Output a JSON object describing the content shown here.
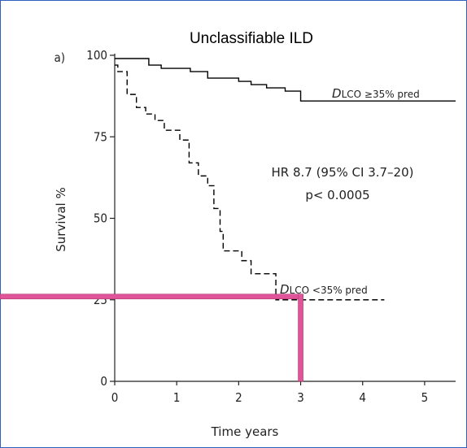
{
  "chart_data": {
    "type": "line",
    "title": "Unclassifiable ILD",
    "panel_label": "a)",
    "xlabel": "Time years",
    "ylabel": "Survival %",
    "xlim": [
      0,
      5.5
    ],
    "ylim": [
      0,
      100
    ],
    "x_ticks": [
      "0",
      "1",
      "2",
      "3",
      "4",
      "5"
    ],
    "y_ticks": [
      "0",
      "25",
      "50",
      "75",
      "100"
    ],
    "series": [
      {
        "name": "DLCO ≥35% pred",
        "style": "solid",
        "color": "#000000",
        "x": [
          0,
          0.42,
          0.55,
          0.75,
          1.0,
          1.22,
          1.5,
          1.75,
          2.0,
          2.2,
          2.45,
          2.75,
          3.0,
          5.5
        ],
        "y": [
          99,
          99,
          97,
          96,
          96,
          95,
          93,
          93,
          92,
          91,
          90,
          89,
          86,
          86
        ]
      },
      {
        "name": "DLCO <35% pred",
        "style": "dashed",
        "color": "#000000",
        "x": [
          0,
          0.05,
          0.2,
          0.35,
          0.5,
          0.65,
          0.8,
          0.95,
          1.05,
          1.2,
          1.35,
          1.5,
          1.6,
          1.7,
          1.75,
          1.85,
          2.05,
          2.2,
          2.5,
          2.6,
          3.0,
          4.35
        ],
        "y": [
          97,
          95,
          88,
          84,
          82,
          80,
          77,
          77,
          74,
          67,
          63,
          60,
          53,
          46,
          40,
          40,
          37,
          33,
          33,
          25,
          25,
          25
        ]
      }
    ],
    "annotations": {
      "hr_line1": "HR 8.7 (95% CI 3.7–20)",
      "hr_line2": "p< 0.0005",
      "label_high_italic": "D",
      "label_high_rest": "LCO ≥35% pred",
      "label_low_italic": "D",
      "label_low_rest": "LCO <35% pred"
    },
    "overlay": {
      "color": "#e0559a",
      "horizontal_y": 26,
      "vertical_x": 3
    }
  }
}
